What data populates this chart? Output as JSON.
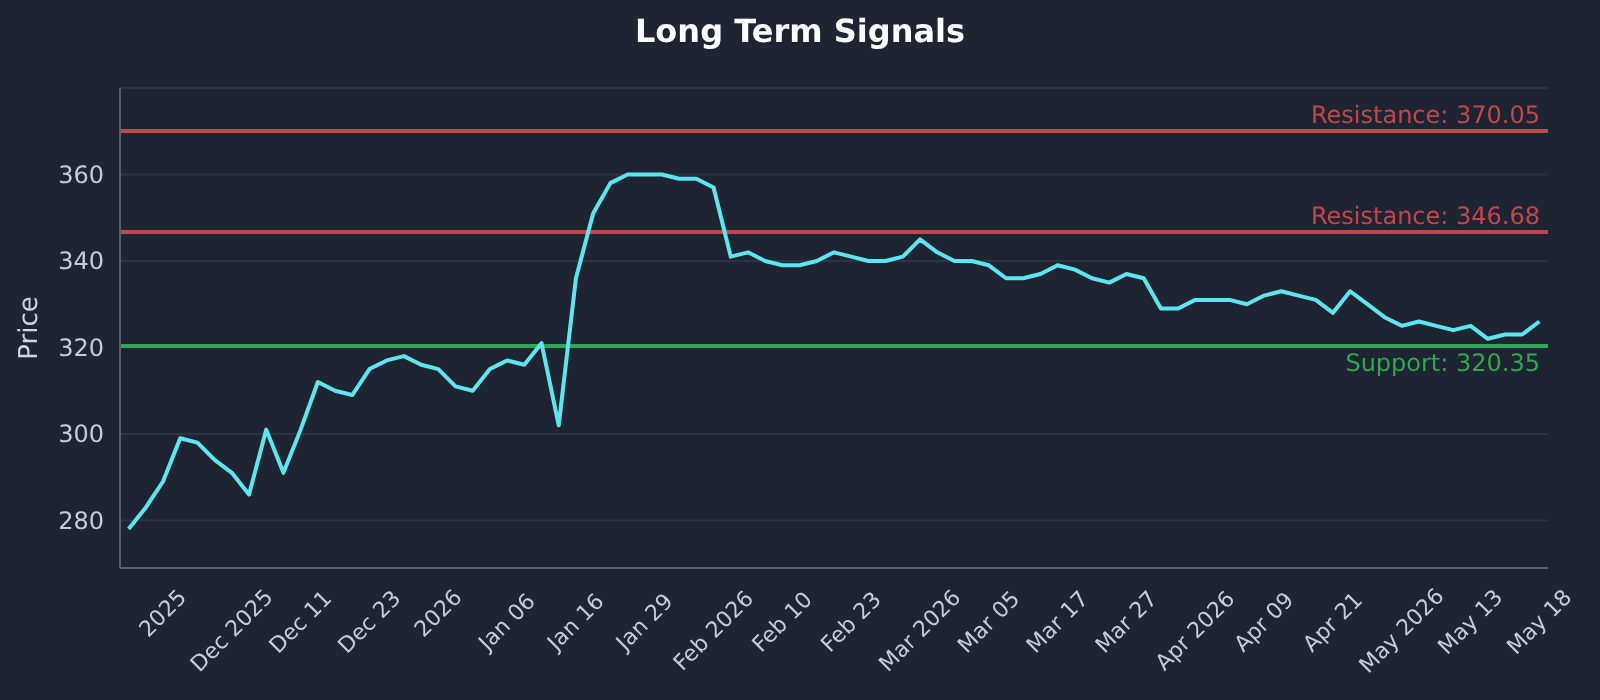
{
  "chart_data": {
    "type": "line",
    "title": "Long Term Signals",
    "ylabel": "Price",
    "categories": [
      null,
      null,
      "2025",
      null,
      null,
      null,
      "Dec 2025",
      null,
      null,
      null,
      "Dec 11",
      null,
      null,
      null,
      "Dec 23",
      null,
      null,
      null,
      "2026",
      null,
      null,
      null,
      "Jan 06",
      null,
      null,
      null,
      "Jan 16",
      null,
      null,
      null,
      "Jan 29",
      null,
      null,
      null,
      "Feb 2026",
      null,
      null,
      null,
      "Feb 10",
      null,
      null,
      null,
      "Feb 23",
      null,
      null,
      null,
      "Mar 2026",
      null,
      null,
      null,
      "Mar 05",
      null,
      null,
      null,
      "Mar 17",
      null,
      null,
      null,
      "Mar 27",
      null,
      null,
      null,
      "Apr 2026",
      null,
      null,
      null,
      "Apr 09",
      null,
      null,
      null,
      "Apr 21",
      null,
      null,
      null,
      "May 2026",
      null,
      null,
      null,
      "May 13",
      null,
      null,
      null,
      "May 18"
    ],
    "series": [
      {
        "color": "#5ee6f0",
        "values": [
          278,
          283,
          289,
          299,
          298,
          294,
          291,
          286,
          301,
          291,
          301,
          312,
          310,
          309,
          315,
          317,
          318,
          316,
          315,
          311,
          310,
          315,
          317,
          316,
          321,
          302,
          336,
          351,
          358,
          360,
          360,
          360,
          359,
          359,
          357,
          341,
          342,
          340,
          339,
          339,
          340,
          342,
          341,
          340,
          340,
          341,
          345,
          342,
          340,
          340,
          339,
          336,
          336,
          337,
          339,
          338,
          336,
          335,
          337,
          336,
          329,
          329,
          331,
          331,
          331,
          330,
          332,
          333,
          332,
          331,
          328,
          333,
          330,
          327,
          325,
          326,
          325,
          324,
          325,
          322,
          323,
          323,
          326
        ]
      }
    ],
    "ylim": [
      269,
      380
    ],
    "yticks": [
      280,
      300,
      320,
      340,
      360
    ],
    "grid": "y",
    "legend": false,
    "marker": "none",
    "line_style": "solid",
    "ref_lines": [
      {
        "axis": "y",
        "value": 370.05,
        "label": "Resistance: 370.05",
        "color": "#c2474d"
      },
      {
        "axis": "y",
        "value": 346.68,
        "label": "Resistance: 346.68",
        "color": "#c2474d"
      },
      {
        "axis": "y",
        "value": 320.35,
        "label": "Support: 320.35",
        "color": "#2fa84f"
      }
    ]
  }
}
